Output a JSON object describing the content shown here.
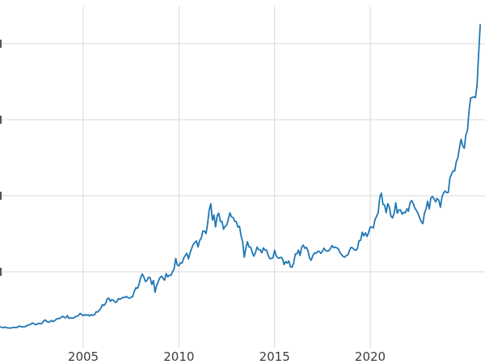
{
  "page": {
    "background": "#ffffff",
    "description": "Cropped line chart of gold price in USD per ounce, 2000 through late 2025; y-axis labels cut off at left edge"
  },
  "chart_data": {
    "type": "line",
    "title": "",
    "xlabel": "",
    "ylabel": "",
    "grid": true,
    "legend": false,
    "xlim": [
      2000.6,
      2025.9
    ],
    "ylim": [
      0,
      4574
    ],
    "colors": {
      "line": "#1f77b4",
      "grid": "#d8d8d8",
      "tick_label": "#3d3d3d",
      "background": "#ffffff"
    },
    "x_ticks": [
      {
        "value": 2005,
        "label": "2005"
      },
      {
        "value": 2010,
        "label": "2010"
      },
      {
        "value": 2015,
        "label": "2015"
      },
      {
        "value": 2020,
        "label": "2020"
      }
    ],
    "y_gridlines": [
      1000,
      2000,
      3000,
      4000
    ],
    "series": [
      {
        "name": "gold-price-usd-oz",
        "color": "#1f77b4",
        "x_start": 2000.0,
        "x_step_years": 0.0833333,
        "values": [
          283,
          294,
          286,
          280,
          275,
          289,
          281,
          277,
          274,
          270,
          266,
          272,
          265,
          262,
          258,
          263,
          267,
          270,
          266,
          274,
          287,
          279,
          275,
          277,
          282,
          297,
          301,
          308,
          327,
          319,
          304,
          310,
          323,
          317,
          319,
          348,
          368,
          350,
          336,
          340,
          361,
          346,
          355,
          375,
          385,
          385,
          398,
          416,
          400,
          396,
          424,
          388,
          394,
          392,
          391,
          410,
          415,
          425,
          453,
          438,
          422,
          436,
          428,
          435,
          419,
          437,
          429,
          433,
          473,
          470,
          495,
          517,
          568,
          556,
          582,
          644,
          653,
          613,
          634,
          623,
          599,
          604,
          647,
          636,
          651,
          665,
          662,
          677,
          661,
          651,
          666,
          672,
          743,
          790,
          783,
          834,
          923,
          971,
          933,
          871,
          886,
          930,
          918,
          833,
          885,
          731,
          815,
          870,
          920,
          942,
          916,
          888,
          976,
          934,
          954,
          953,
          996,
          1040,
          1176,
          1088,
          1078,
          1118,
          1116,
          1180,
          1215,
          1244,
          1169,
          1247,
          1308,
          1360,
          1384,
          1406,
          1327,
          1412,
          1439,
          1535,
          1536,
          1502,
          1628,
          1813,
          1895,
          1680,
          1746,
          1590,
          1738,
          1771,
          1662,
          1664,
          1558,
          1598,
          1615,
          1692,
          1776,
          1721,
          1715,
          1664,
          1661,
          1588,
          1598,
          1469,
          1394,
          1192,
          1313,
          1396,
          1327,
          1324,
          1253,
          1205,
          1251,
          1326,
          1291,
          1288,
          1250,
          1315,
          1285,
          1285,
          1216,
          1173,
          1175,
          1184,
          1283,
          1214,
          1183,
          1180,
          1191,
          1172,
          1095,
          1135,
          1114,
          1142,
          1065,
          1061,
          1116,
          1234,
          1237,
          1285,
          1215,
          1322,
          1351,
          1309,
          1322,
          1272,
          1178,
          1152,
          1212,
          1248,
          1244,
          1268,
          1269,
          1242,
          1267,
          1311,
          1280,
          1271,
          1275,
          1303,
          1345,
          1318,
          1325,
          1315,
          1301,
          1253,
          1224,
          1202,
          1192,
          1215,
          1222,
          1282,
          1321,
          1313,
          1292,
          1283,
          1306,
          1409,
          1414,
          1520,
          1472,
          1513,
          1464,
          1517,
          1589,
          1586,
          1577,
          1686,
          1730,
          1781,
          1976,
          2035,
          1886,
          1879,
          1777,
          1898,
          1848,
          1734,
          1708,
          1769,
          1907,
          1770,
          1814,
          1814,
          1757,
          1783,
          1775,
          1829,
          1797,
          1909,
          1937,
          1897,
          1837,
          1807,
          1766,
          1711,
          1661,
          1634,
          1769,
          1824,
          1928,
          1827,
          1969,
          1990,
          1963,
          1919,
          1965,
          1940,
          1849,
          1983,
          2036,
          2063,
          2040,
          2044,
          2230,
          2286,
          2327,
          2327,
          2448,
          2503,
          2635,
          2744,
          2657,
          2625,
          2798,
          2858,
          3124,
          3289,
          3289,
          3303,
          3290,
          3448,
          3859,
          4250
        ]
      }
    ]
  }
}
